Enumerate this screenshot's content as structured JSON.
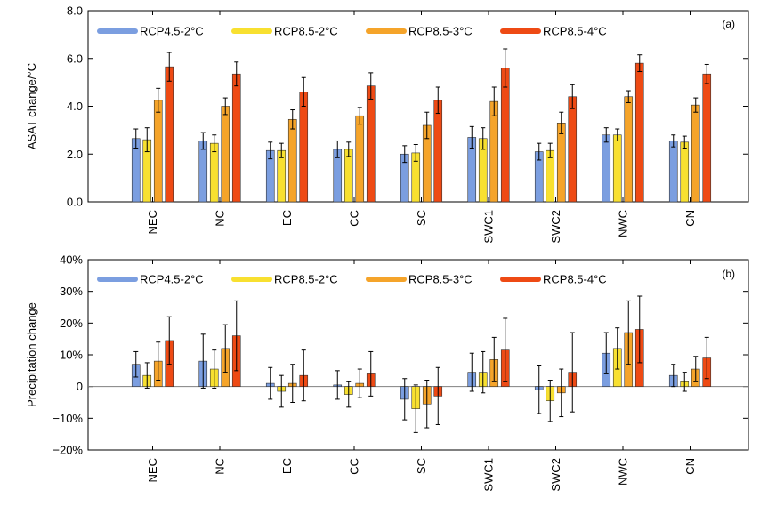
{
  "chart_data": [
    {
      "type": "bar",
      "panel_label": "(a)",
      "ylabel": "ASAT change/°C",
      "ylim": [
        0,
        8
      ],
      "yticks": [
        0,
        2,
        4,
        6,
        8
      ],
      "ytick_labels": [
        "0.0",
        "2.0",
        "4.0",
        "6.0",
        "8.0"
      ],
      "categories": [
        "NEC",
        "NC",
        "EC",
        "CC",
        "SC",
        "SWC1",
        "SWC2",
        "NWC",
        "CN"
      ],
      "legend_placement": "top-left",
      "grid": false,
      "error_bars": true,
      "series": [
        {
          "name": "RCP4.5-2°C",
          "color": "#7b9ee0",
          "values": [
            2.65,
            2.55,
            2.15,
            2.2,
            2.0,
            2.7,
            2.1,
            2.8,
            2.55
          ],
          "errors": [
            0.4,
            0.35,
            0.35,
            0.35,
            0.35,
            0.45,
            0.35,
            0.3,
            0.25
          ]
        },
        {
          "name": "RCP8.5-2°C",
          "color": "#f8e030",
          "values": [
            2.6,
            2.45,
            2.15,
            2.2,
            2.05,
            2.65,
            2.15,
            2.8,
            2.5
          ],
          "errors": [
            0.5,
            0.35,
            0.3,
            0.3,
            0.35,
            0.45,
            0.3,
            0.25,
            0.25
          ]
        },
        {
          "name": "RCP8.5-3°C",
          "color": "#f5a42a",
          "values": [
            4.25,
            4.0,
            3.45,
            3.6,
            3.2,
            4.2,
            3.3,
            4.4,
            4.05
          ],
          "errors": [
            0.5,
            0.35,
            0.4,
            0.35,
            0.55,
            0.6,
            0.45,
            0.25,
            0.3
          ]
        },
        {
          "name": "RCP8.5-4°C",
          "color": "#ee4a14",
          "values": [
            5.65,
            5.35,
            4.6,
            4.85,
            4.25,
            5.6,
            4.4,
            5.8,
            5.35
          ],
          "errors": [
            0.6,
            0.5,
            0.6,
            0.55,
            0.55,
            0.8,
            0.5,
            0.35,
            0.4
          ]
        }
      ]
    },
    {
      "type": "bar",
      "panel_label": "(b)",
      "ylabel": "Precipitation change",
      "ylim": [
        -20,
        40
      ],
      "yticks": [
        -20,
        -10,
        0,
        10,
        20,
        30,
        40
      ],
      "ytick_labels": [
        "−20%",
        "−10%",
        "0",
        "10%",
        "20%",
        "30%",
        "40%"
      ],
      "categories": [
        "NEC",
        "NC",
        "EC",
        "CC",
        "SC",
        "SWC1",
        "SWC2",
        "NWC",
        "CN"
      ],
      "legend_placement": "top-left",
      "grid": false,
      "zero_line": true,
      "error_bars": true,
      "series": [
        {
          "name": "RCP4.5-2°C",
          "color": "#7b9ee0",
          "values": [
            7,
            8,
            1,
            0.5,
            -4,
            4.5,
            -1,
            10.5,
            3.5
          ],
          "errors": [
            4,
            8.5,
            5,
            4.5,
            6.5,
            6,
            7.5,
            6.5,
            3.5
          ]
        },
        {
          "name": "RCP8.5-2°C",
          "color": "#f8e030",
          "values": [
            3.5,
            5.5,
            -1.5,
            -2.5,
            -7,
            4.5,
            -4.5,
            12,
            1.5
          ],
          "errors": [
            4,
            6,
            5,
            4,
            7.5,
            6.5,
            6.5,
            6.5,
            3
          ]
        },
        {
          "name": "RCP8.5-3°C",
          "color": "#f5a42a",
          "values": [
            8,
            12,
            1,
            1,
            -5.5,
            8.5,
            -2,
            17,
            5.5
          ],
          "errors": [
            6,
            7.5,
            6,
            4.5,
            7.5,
            7,
            7.5,
            10,
            4
          ]
        },
        {
          "name": "RCP8.5-4°C",
          "color": "#ee4a14",
          "values": [
            14.5,
            16,
            3.5,
            4,
            -3,
            11.5,
            4.5,
            18,
            9
          ],
          "errors": [
            7.5,
            11,
            8,
            7,
            9,
            10,
            12.5,
            10.5,
            6.5
          ]
        }
      ]
    }
  ]
}
